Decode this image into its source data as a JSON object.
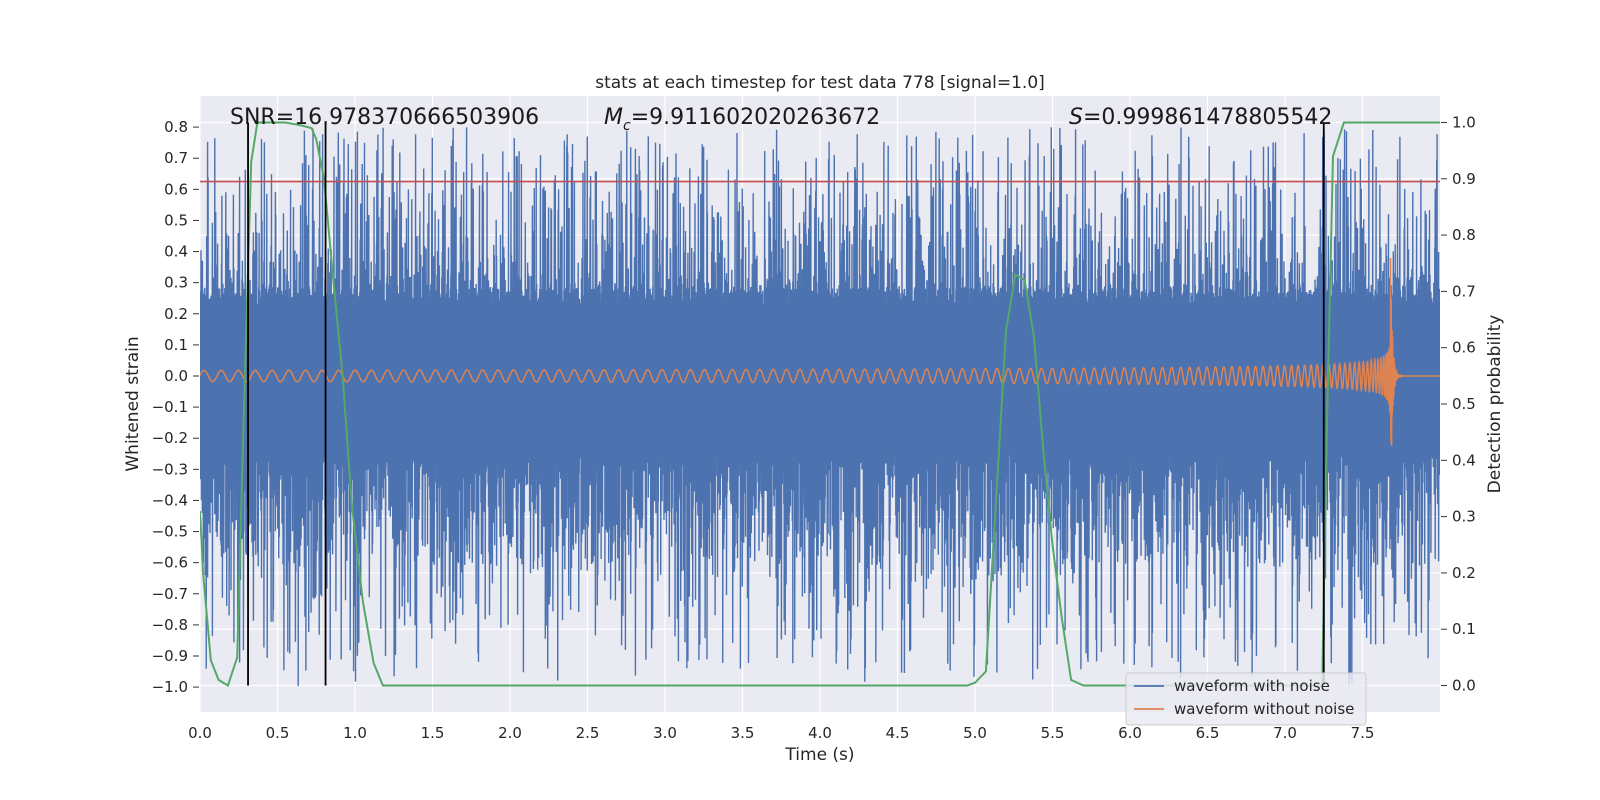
{
  "chart_data": {
    "type": "line",
    "title": "stats at each timestep for test data 778 [signal=1.0]",
    "xlabel": "Time (s)",
    "ylabel": "Whitened strain",
    "y2label": "Detection probability",
    "xlim": [
      0.0,
      8.0
    ],
    "ylim": [
      -1.08,
      0.9
    ],
    "y2lim": [
      -0.047,
      1.047
    ],
    "xticks": [
      "0.0",
      "0.5",
      "1.0",
      "1.5",
      "2.0",
      "2.5",
      "3.0",
      "3.5",
      "4.0",
      "4.5",
      "5.0",
      "5.5",
      "6.0",
      "6.5",
      "7.0",
      "7.5"
    ],
    "yticks": [
      "0.8",
      "0.7",
      "0.6",
      "0.5",
      "0.4",
      "0.3",
      "0.2",
      "0.1",
      "0.0",
      "−0.1",
      "−0.2",
      "−0.3",
      "−0.4",
      "−0.5",
      "−0.6",
      "−0.7",
      "−0.8",
      "−0.9",
      "−1.0"
    ],
    "y2ticks": [
      "1.0",
      "0.9",
      "0.8",
      "0.7",
      "0.6",
      "0.5",
      "0.4",
      "0.3",
      "0.2",
      "0.1",
      "0.0"
    ],
    "grid": true,
    "legend_position": "lower-right",
    "annotations": {
      "snr": "SNR=16.978370666503906",
      "mc_symbol": "M",
      "mc_sub": "c",
      "mc_value": "=9.911602020263672",
      "s_symbol": "S",
      "s_value": "=0.999861478805542"
    },
    "threshold_y": 0.625,
    "vertical_markers_x": [
      0.31,
      0.81,
      7.25
    ],
    "series": [
      {
        "name": "waveform with noise",
        "color": "#4c72b0",
        "envelope_typical": 0.28,
        "peak_max": 0.8,
        "peak_min": -1.0
      },
      {
        "name": "waveform without noise",
        "color": "#dd8452",
        "start_amplitude": 0.018,
        "merger_time": 7.68,
        "peak_max": 0.55,
        "peak_min": -0.6
      },
      {
        "name": "detection probability",
        "color": "#55a868",
        "x": [
          0.0,
          0.02,
          0.07,
          0.12,
          0.18,
          0.24,
          0.29,
          0.33,
          0.37,
          0.4,
          0.45,
          0.55,
          0.65,
          0.72,
          0.75,
          0.8,
          0.86,
          0.92,
          0.98,
          1.05,
          1.12,
          1.18,
          1.24,
          1.4,
          2.0,
          3.0,
          4.0,
          4.8,
          4.95,
          5.0,
          5.07,
          5.13,
          5.2,
          5.26,
          5.32,
          5.38,
          5.44,
          5.5,
          5.56,
          5.62,
          5.7,
          6.0,
          7.0,
          7.2,
          7.24,
          7.27,
          7.31,
          7.38,
          7.5,
          7.7,
          8.0
        ],
        "y": [
          0.31,
          0.2,
          0.045,
          0.01,
          0.0,
          0.05,
          0.55,
          0.93,
          1.0,
          1.0,
          1.0,
          1.0,
          0.995,
          0.99,
          0.97,
          0.9,
          0.72,
          0.55,
          0.32,
          0.15,
          0.04,
          0.0,
          0.0,
          0.0,
          0.0,
          0.0,
          0.0,
          0.0,
          0.0,
          0.005,
          0.025,
          0.3,
          0.63,
          0.73,
          0.72,
          0.62,
          0.42,
          0.25,
          0.12,
          0.01,
          0.0,
          0.0,
          0.0,
          0.0,
          0.0,
          0.45,
          0.94,
          1.0,
          1.0,
          1.0,
          1.0
        ]
      }
    ],
    "threshold_color": "#c44e52",
    "marker_color": "#000000"
  }
}
